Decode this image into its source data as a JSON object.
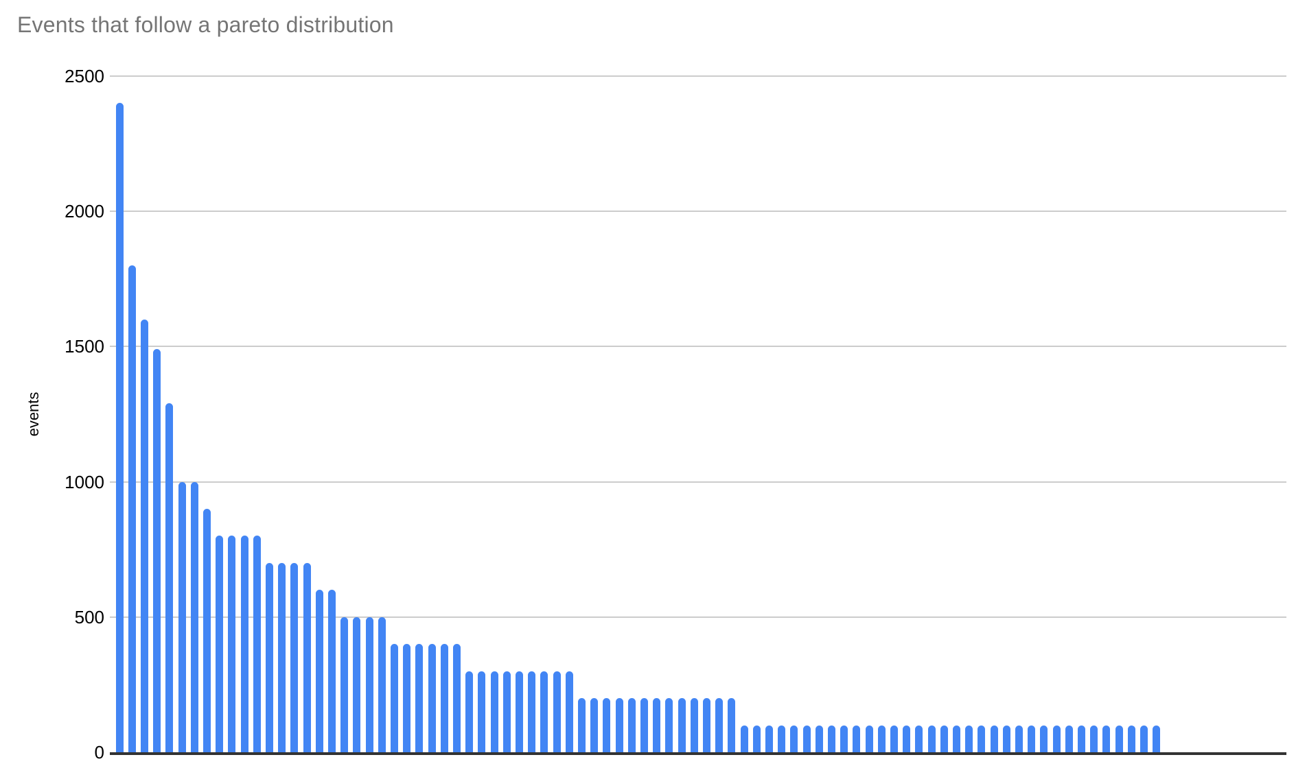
{
  "chart_data": {
    "type": "bar",
    "title": "Events that follow a pareto distribution",
    "ylabel": "events",
    "ylim": [
      0,
      2500
    ],
    "yticks": [
      2500,
      2000,
      1500,
      1000,
      500,
      0
    ],
    "grid": true,
    "legend": false,
    "x_tick_labels_shown": false,
    "colors": {
      "bar": "#4285f4",
      "gridline": "#cccccc",
      "baseline": "#333333",
      "title": "#757575",
      "tick_label": "#000000",
      "axis_title": "#000000",
      "background": "#ffffff"
    },
    "values": [
      2400,
      1800,
      1600,
      1490,
      1290,
      1000,
      1000,
      900,
      800,
      800,
      800,
      800,
      700,
      700,
      700,
      700,
      600,
      600,
      500,
      500,
      500,
      500,
      400,
      400,
      400,
      400,
      400,
      400,
      300,
      300,
      300,
      300,
      300,
      300,
      300,
      300,
      300,
      200,
      200,
      200,
      200,
      200,
      200,
      200,
      200,
      200,
      200,
      200,
      200,
      200,
      100,
      100,
      100,
      100,
      100,
      100,
      100,
      100,
      100,
      100,
      100,
      100,
      100,
      100,
      100,
      100,
      100,
      100,
      100,
      100,
      100,
      100,
      100,
      100,
      100,
      100,
      100,
      100,
      100,
      100,
      100,
      100,
      100,
      100
    ]
  }
}
